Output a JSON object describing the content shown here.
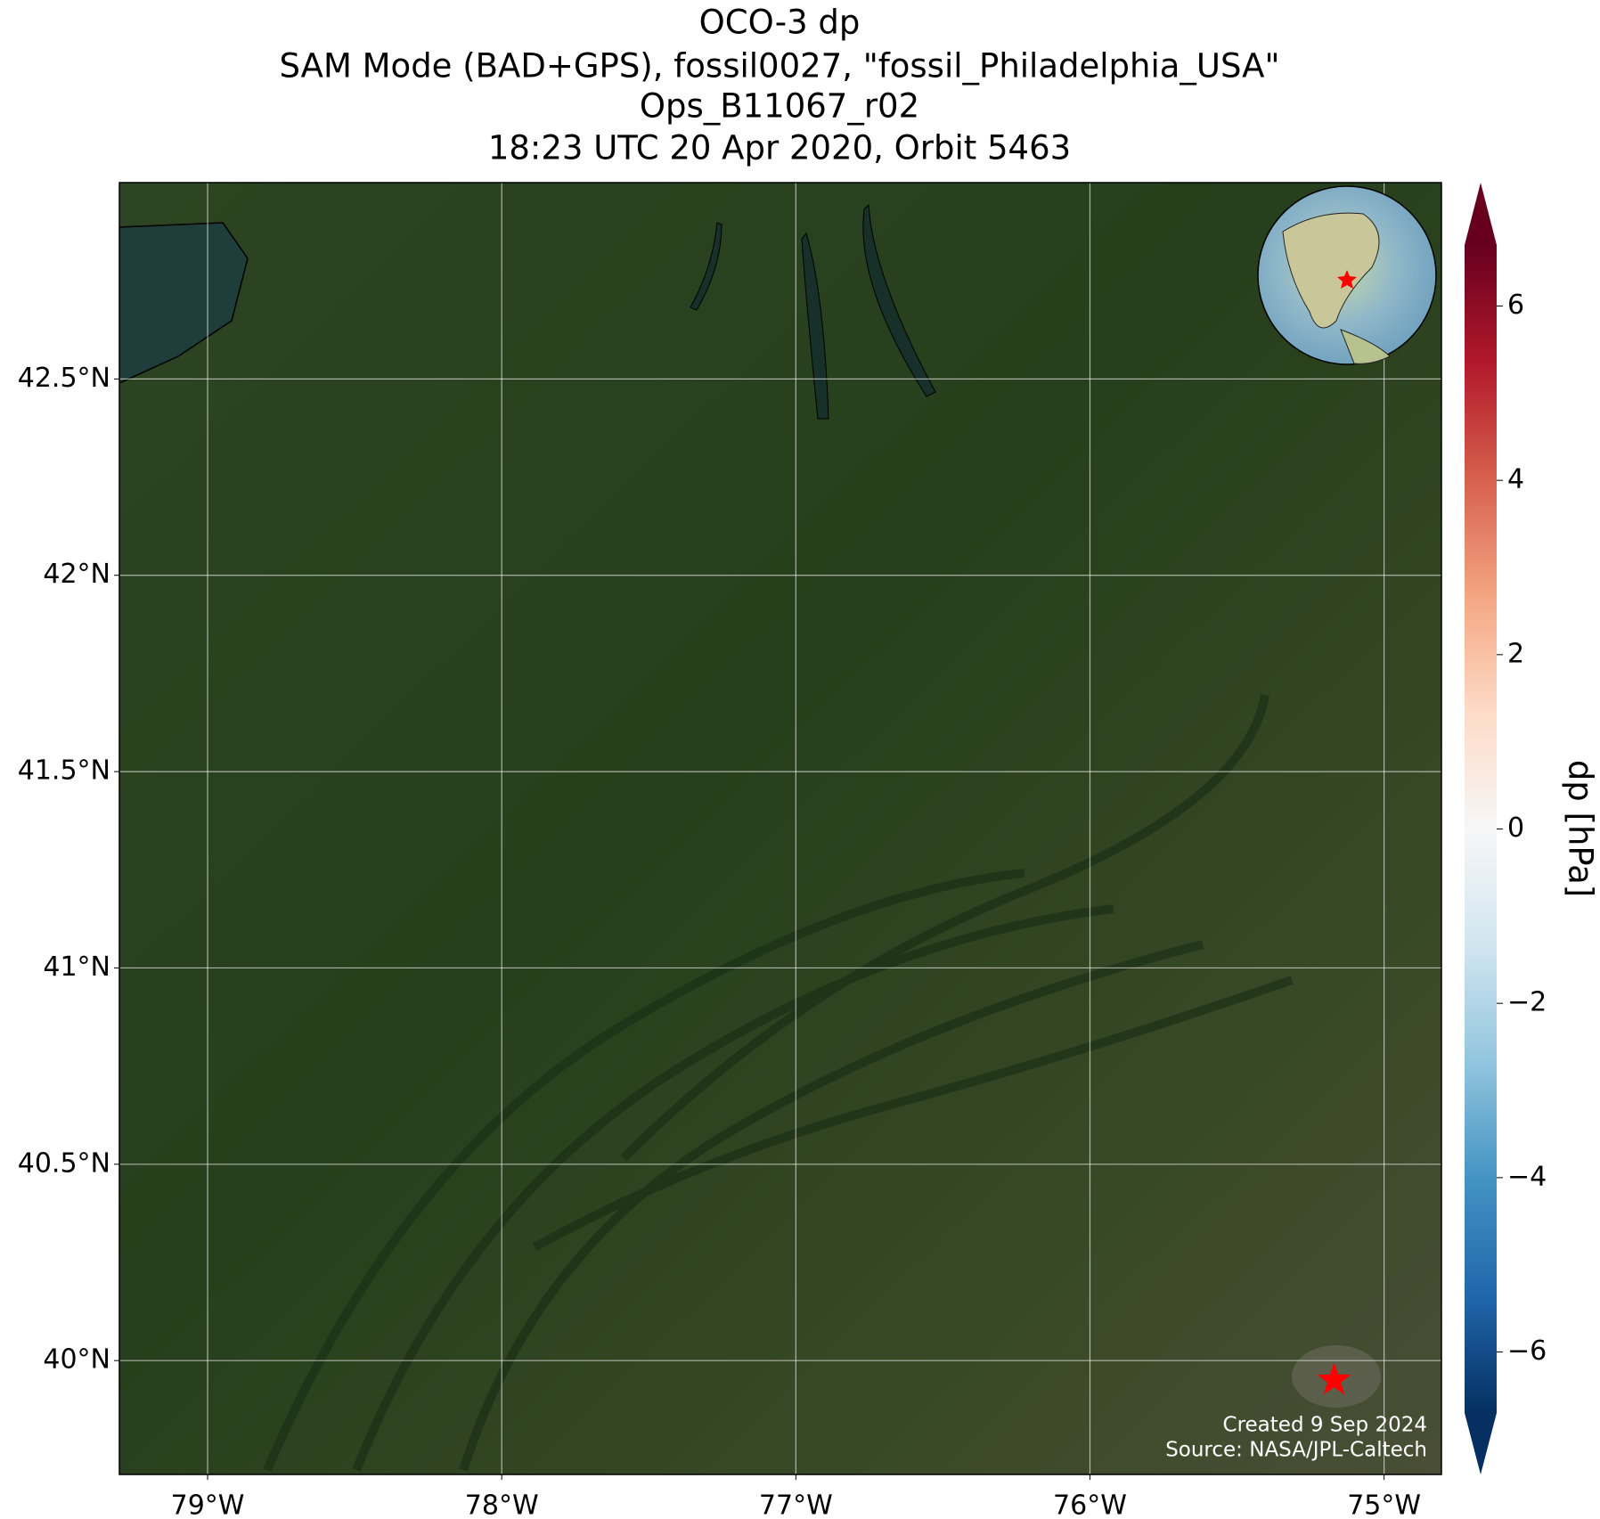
{
  "chart_data": {
    "type": "map",
    "title": [
      "OCO-3 dp",
      "SAM Mode (BAD+GPS), fossil0027, \"fossil_Philadelphia_USA\"",
      "Ops_B11067_r02",
      "18:23 UTC 20 Apr 2020, Orbit 5463"
    ],
    "xlim": [
      -79.3,
      -74.805
    ],
    "ylim": [
      39.71,
      43.0
    ],
    "xticks": [
      {
        "value": -79,
        "label": "79°W"
      },
      {
        "value": -78,
        "label": "78°W"
      },
      {
        "value": -77,
        "label": "77°W"
      },
      {
        "value": -76,
        "label": "76°W"
      },
      {
        "value": -75,
        "label": "75°W"
      }
    ],
    "yticks": [
      {
        "value": 40,
        "label": "40°N"
      },
      {
        "value": 40.5,
        "label": "40.5°N"
      },
      {
        "value": 41,
        "label": "41°N"
      },
      {
        "value": 41.5,
        "label": "41.5°N"
      },
      {
        "value": 42,
        "label": "42°N"
      },
      {
        "value": 42.5,
        "label": "42.5°N"
      }
    ],
    "grid": true,
    "marker": {
      "lon": -75.17,
      "lat": 39.95,
      "color": "#ff0000"
    },
    "notes": [
      "Created 9 Sep 2024",
      "Source: NASA/JPL-Caltech"
    ],
    "colorbar": {
      "label": "dp [hPa]",
      "lim": [
        -6.7,
        6.7
      ],
      "ticks": [
        {
          "value": -6,
          "label": "−6"
        },
        {
          "value": -4,
          "label": "−4"
        },
        {
          "value": -2,
          "label": "−2"
        },
        0,
        2,
        4,
        6
      ]
    }
  }
}
